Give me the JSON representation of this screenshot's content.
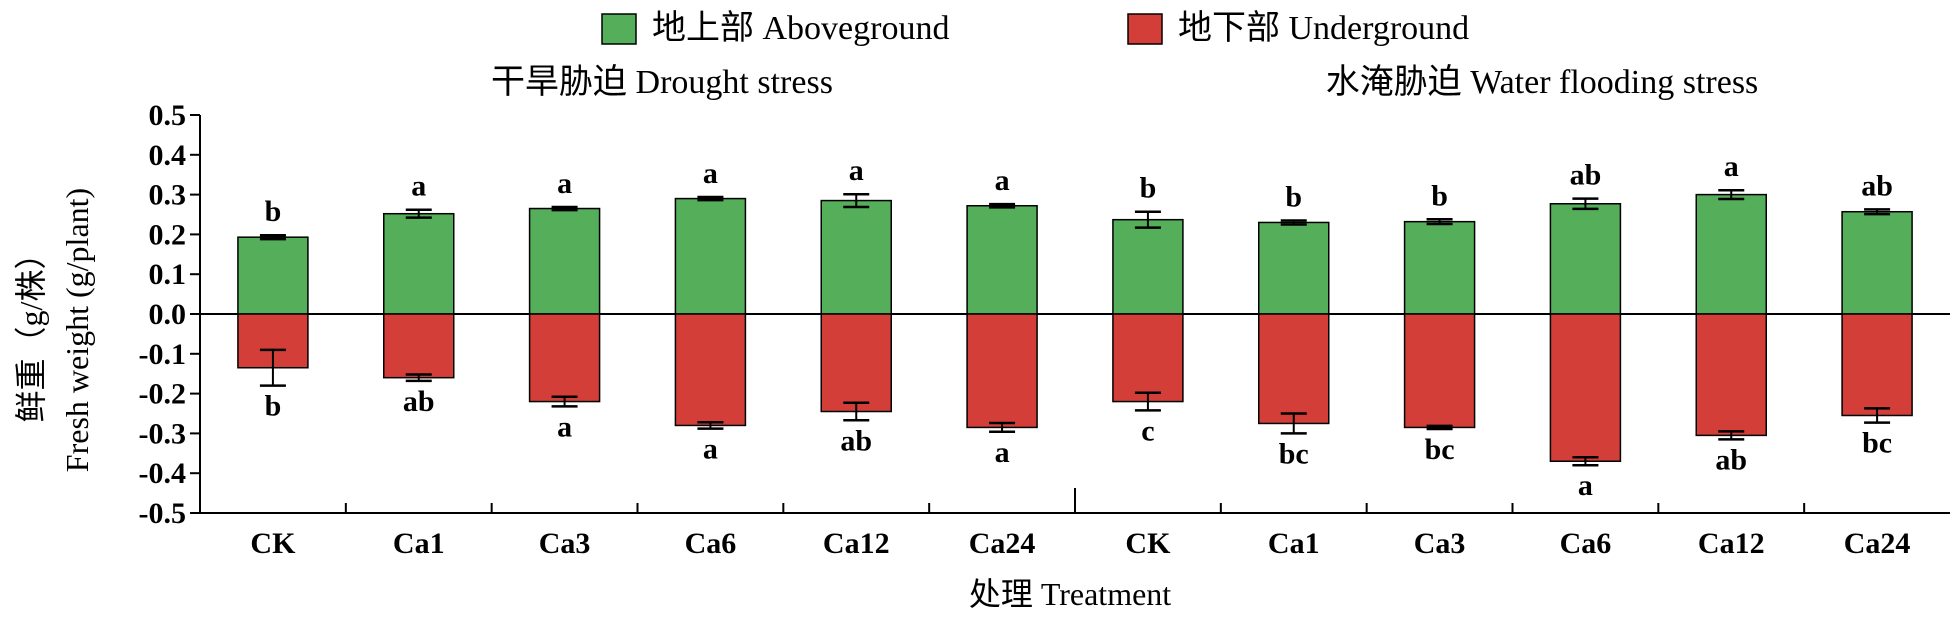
{
  "chart_data": {
    "type": "bar",
    "legend": {
      "placement": "top-center",
      "entries": [
        {
          "label": "地上部 Aboveground",
          "color": "#55ae5a"
        },
        {
          "label": "地下部 Underground",
          "color": "#d33f38"
        }
      ]
    },
    "groups": [
      {
        "title": "干旱胁迫 Drought stress",
        "categories": [
          "CK",
          "Ca1",
          "Ca3",
          "Ca6",
          "Ca12",
          "Ca24"
        ]
      },
      {
        "title": "水淹胁迫 Water flooding stress",
        "categories": [
          "CK",
          "Ca1",
          "Ca3",
          "Ca6",
          "Ca12",
          "Ca24"
        ]
      }
    ],
    "categories": [
      "CK",
      "Ca1",
      "Ca3",
      "Ca6",
      "Ca12",
      "Ca24",
      "CK",
      "Ca1",
      "Ca3",
      "Ca6",
      "Ca12",
      "Ca24"
    ],
    "series": [
      {
        "name": "地上部 Aboveground",
        "color": "#55ae5a",
        "values": [
          0.193,
          0.252,
          0.265,
          0.29,
          0.285,
          0.272,
          0.237,
          0.23,
          0.232,
          0.277,
          0.3,
          0.257
        ],
        "errors": [
          0.005,
          0.01,
          0.004,
          0.004,
          0.016,
          0.004,
          0.02,
          0.005,
          0.006,
          0.013,
          0.011,
          0.006
        ],
        "labels": [
          "b",
          "a",
          "a",
          "a",
          "a",
          "a",
          "b",
          "b",
          "b",
          "ab",
          "a",
          "ab"
        ]
      },
      {
        "name": "地下部 Underground",
        "color": "#d33f38",
        "values": [
          -0.135,
          -0.16,
          -0.22,
          -0.28,
          -0.245,
          -0.285,
          -0.22,
          -0.275,
          -0.285,
          -0.37,
          -0.305,
          -0.255
        ],
        "errors": [
          0.045,
          0.008,
          0.012,
          0.008,
          0.022,
          0.011,
          0.022,
          0.025,
          0.004,
          0.01,
          0.01,
          0.018
        ],
        "labels": [
          "b",
          "ab",
          "a",
          "a",
          "ab",
          "a",
          "c",
          "bc",
          "bc",
          "a",
          "ab",
          "bc"
        ]
      }
    ],
    "xlabel": "处理 Treatment",
    "ylabel_cn": "鲜重（g/株）",
    "ylabel_en": "Fresh weight (g/plant)",
    "ylim": [
      -0.5,
      0.5
    ],
    "yticks": [
      "0.5",
      "0.4",
      "0.3",
      "0.2",
      "0.1",
      "0.0",
      "-0.1",
      "-0.2",
      "-0.3",
      "-0.4",
      "-0.5"
    ],
    "grid": false
  }
}
